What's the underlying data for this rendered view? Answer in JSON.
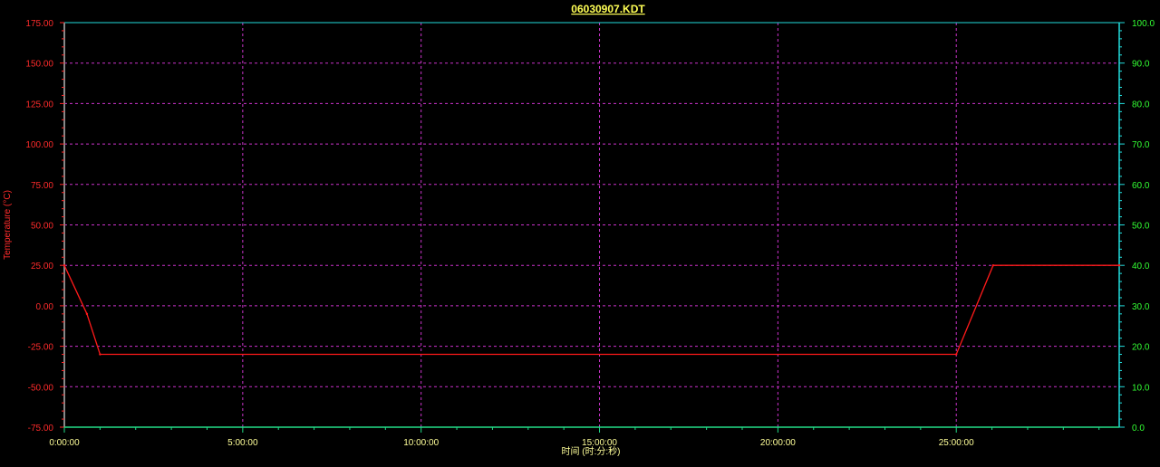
{
  "chart_data": {
    "type": "line",
    "title": "06030907.KDT",
    "xlabel": "时间 (时:分:秒)",
    "ylabel": "Temperature (°C)",
    "ylabel_right": "",
    "x_ticks": [
      "0:00:00",
      "5:00:00",
      "10:00:00",
      "15:00:00",
      "20:00:00",
      "25:00:00"
    ],
    "x_tick_values_minutes": [
      0,
      300,
      600,
      900,
      1200,
      1500
    ],
    "xlim_minutes": [
      0,
      1774
    ],
    "y_ticks_left": [
      "175.00",
      "150.00",
      "125.00",
      "100.00",
      "75.00",
      "50.00",
      "25.00",
      "0.00",
      "-25.00",
      "-50.00",
      "-75.00"
    ],
    "ylim_left": [
      -75,
      175
    ],
    "y_ticks_right": [
      "100.0",
      "90.0",
      "80.0",
      "70.0",
      "60.0",
      "50.0",
      "40.0",
      "30.0",
      "20.0",
      "10.0",
      "0.0"
    ],
    "ylim_right": [
      0,
      100
    ],
    "grid": true,
    "series": [
      {
        "x_minutes": [
          0,
          38,
          60,
          1500,
          1562,
          1774
        ],
        "y": [
          25,
          -5,
          -30,
          -30,
          25,
          25
        ]
      }
    ],
    "colors": {
      "background": "#000000",
      "series": "#ff1a1a",
      "left_axis_text": "#ff2b2b",
      "right_axis_text": "#33ff33",
      "right_axis_line": "#22dddd",
      "bottom_axis_line": "#22dd88",
      "grid": "#cc33cc",
      "title": "#ffff55",
      "x_tick_text": "#ffff99",
      "x_label": "#ffff99"
    }
  }
}
